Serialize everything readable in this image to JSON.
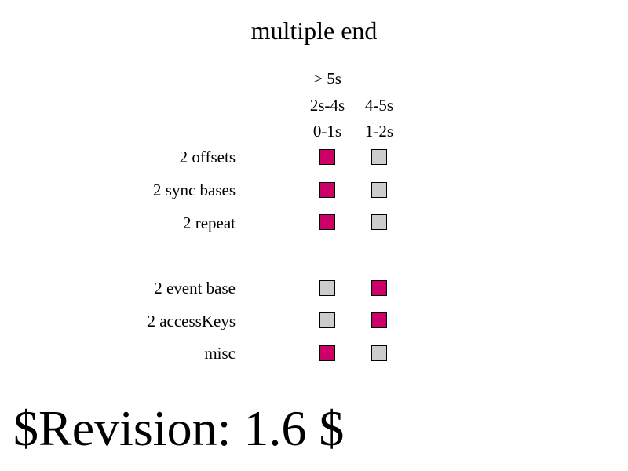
{
  "title": "multiple end",
  "colors": {
    "active": "#cc0066",
    "inactive": "#cccccc",
    "border": "#000000"
  },
  "column_headers": [
    [
      "> 5s",
      "2s-4s",
      "0-1s"
    ],
    [
      "4-5s",
      "1-2s"
    ]
  ],
  "rows": [
    {
      "label": "2 offsets",
      "cells": [
        "active",
        "inactive"
      ]
    },
    {
      "label": "2 sync bases",
      "cells": [
        "active",
        "inactive"
      ]
    },
    {
      "label": "2 repeat",
      "cells": [
        "active",
        "inactive"
      ]
    },
    {
      "label": "2 event base",
      "cells": [
        "inactive",
        "active"
      ]
    },
    {
      "label": "2 accessKeys",
      "cells": [
        "inactive",
        "active"
      ]
    },
    {
      "label": "misc",
      "cells": [
        "active",
        "inactive"
      ]
    }
  ],
  "revision": "$Revision: 1.6 $"
}
